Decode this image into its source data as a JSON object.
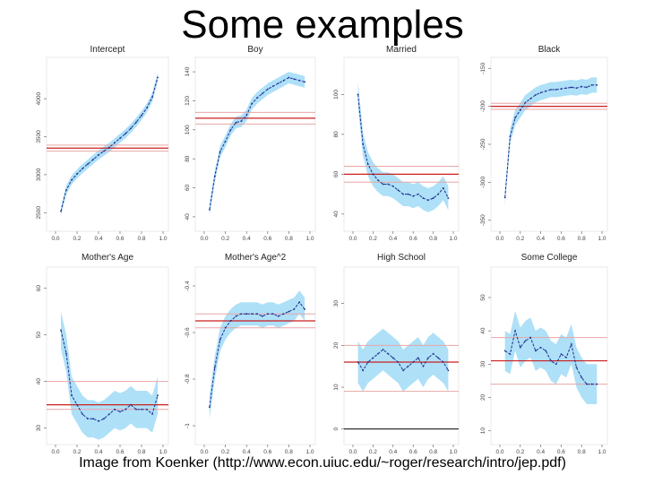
{
  "slide": {
    "title": "Some examples",
    "caption": "Image from Koenker (http://www.econ.uiuc.edu/~roger/research/intro/jep.pdf)"
  },
  "colors": {
    "band": "#aee0f8",
    "estimate": "#1f2f8f",
    "ols": "#cc1f1f",
    "ols_ci": "#e7a6a6",
    "axis": "#555555"
  },
  "chart_data": [
    {
      "type": "line",
      "title": "Intercept",
      "x": [
        0.05,
        0.1,
        0.15,
        0.2,
        0.25,
        0.3,
        0.35,
        0.4,
        0.45,
        0.5,
        0.55,
        0.6,
        0.65,
        0.7,
        0.75,
        0.8,
        0.85,
        0.9,
        0.95
      ],
      "y": [
        2520,
        2800,
        2930,
        3010,
        3080,
        3140,
        3200,
        3260,
        3310,
        3360,
        3420,
        3480,
        3540,
        3610,
        3690,
        3780,
        3880,
        4020,
        4280
      ],
      "band_half_width": 60,
      "ols": 3350,
      "ols_ci": [
        3310,
        3390
      ],
      "ylim": [
        2350,
        4450
      ],
      "yticks": [
        2500,
        3000,
        3500,
        4000
      ],
      "xticks": [
        "0.0",
        "0.2",
        "0.4",
        "0.6",
        "0.8",
        "1.0"
      ],
      "reference_zero": false
    },
    {
      "type": "line",
      "title": "Boy",
      "x": [
        0.05,
        0.1,
        0.15,
        0.2,
        0.25,
        0.3,
        0.35,
        0.4,
        0.45,
        0.5,
        0.55,
        0.6,
        0.65,
        0.7,
        0.75,
        0.8,
        0.85,
        0.9,
        0.95
      ],
      "y": [
        45,
        68,
        85,
        92,
        100,
        105,
        106,
        110,
        118,
        122,
        125,
        128,
        130,
        132,
        134,
        136,
        135,
        134,
        133
      ],
      "band_half_width": 4,
      "ols": 108,
      "ols_ci": [
        104,
        112
      ],
      "ylim": [
        35,
        145
      ],
      "yticks": [
        40,
        60,
        80,
        100,
        120,
        140
      ],
      "xticks": [
        "0.0",
        "0.2",
        "0.4",
        "0.6",
        "0.8",
        "1.0"
      ],
      "reference_zero": false
    },
    {
      "type": "line",
      "title": "Married",
      "x": [
        0.05,
        0.1,
        0.15,
        0.2,
        0.25,
        0.3,
        0.35,
        0.4,
        0.45,
        0.5,
        0.55,
        0.6,
        0.65,
        0.7,
        0.75,
        0.8,
        0.85,
        0.9,
        0.95
      ],
      "y": [
        100,
        75,
        65,
        60,
        57,
        55,
        55,
        54,
        52,
        50,
        50,
        49,
        50,
        48,
        47,
        48,
        50,
        53,
        48
      ],
      "band_half_width": 6,
      "ols": 60,
      "ols_ci": [
        56,
        64
      ],
      "ylim": [
        35,
        115
      ],
      "yticks": [
        40,
        60,
        80,
        100
      ],
      "xticks": [
        "0.0",
        "0.2",
        "0.4",
        "0.6",
        "0.8",
        "1.0"
      ],
      "reference_zero": false
    },
    {
      "type": "line",
      "title": "Black",
      "x": [
        0.05,
        0.1,
        0.15,
        0.2,
        0.25,
        0.3,
        0.35,
        0.4,
        0.45,
        0.5,
        0.55,
        0.6,
        0.65,
        0.7,
        0.75,
        0.8,
        0.85,
        0.9,
        0.95
      ],
      "y": [
        -320,
        -240,
        -215,
        -205,
        -195,
        -190,
        -185,
        -182,
        -180,
        -178,
        -178,
        -177,
        -176,
        -175,
        -176,
        -174,
        -175,
        -172,
        -172
      ],
      "band_half_width": 10,
      "ols": -200,
      "ols_ci": [
        -204,
        -196
      ],
      "ylim": [
        -355,
        -145
      ],
      "yticks": [
        -350,
        -300,
        -250,
        -200,
        -150
      ],
      "xticks": [
        "0.0",
        "0.2",
        "0.4",
        "0.6",
        "0.8",
        "1.0"
      ],
      "reference_zero": false
    },
    {
      "type": "line",
      "title": "Mother's Age",
      "x": [
        0.05,
        0.1,
        0.15,
        0.2,
        0.25,
        0.3,
        0.35,
        0.4,
        0.45,
        0.5,
        0.55,
        0.6,
        0.65,
        0.7,
        0.75,
        0.8,
        0.85,
        0.9,
        0.95
      ],
      "y": [
        51,
        46,
        37,
        35,
        33,
        32,
        32,
        31.5,
        32,
        33,
        34,
        33.5,
        34,
        35,
        34,
        34,
        34,
        33,
        37
      ],
      "band_half_width": 4,
      "ols": 35,
      "ols_ci": [
        34,
        40
      ],
      "ylim": [
        28,
        63
      ],
      "yticks": [
        30,
        40,
        50,
        60
      ],
      "xticks": [
        "0.0",
        "0.2",
        "0.4",
        "0.6",
        "0.8",
        "1.0"
      ],
      "reference_zero": false
    },
    {
      "type": "line",
      "title": "Mother's Age^2",
      "x": [
        0.05,
        0.1,
        0.15,
        0.2,
        0.25,
        0.3,
        0.35,
        0.4,
        0.45,
        0.5,
        0.55,
        0.6,
        0.65,
        0.7,
        0.75,
        0.8,
        0.85,
        0.9,
        0.95
      ],
      "y": [
        -0.92,
        -0.75,
        -0.63,
        -0.58,
        -0.55,
        -0.53,
        -0.52,
        -0.52,
        -0.52,
        -0.52,
        -0.53,
        -0.52,
        -0.52,
        -0.53,
        -0.52,
        -0.51,
        -0.5,
        -0.47,
        -0.5
      ],
      "band_half_width": 0.05,
      "ols": -0.55,
      "ols_ci": [
        -0.58,
        -0.52
      ],
      "ylim": [
        -1.05,
        -0.35
      ],
      "yticks": [
        -1.0,
        -0.8,
        -0.6,
        -0.4
      ],
      "xticks": [
        "0.0",
        "0.2",
        "0.4",
        "0.6",
        "0.8",
        "1.0"
      ],
      "reference_zero": false
    },
    {
      "type": "line",
      "title": "High School",
      "x": [
        0.05,
        0.1,
        0.15,
        0.2,
        0.25,
        0.3,
        0.35,
        0.4,
        0.45,
        0.5,
        0.55,
        0.6,
        0.65,
        0.7,
        0.75,
        0.8,
        0.85,
        0.9,
        0.95
      ],
      "y": [
        16,
        14,
        16,
        17,
        18,
        19,
        18,
        17,
        16,
        14,
        15,
        16,
        17,
        15,
        17,
        18,
        17,
        16,
        14
      ],
      "band_half_width": 5,
      "ols": 16,
      "ols_ci": [
        9,
        20
      ],
      "ylim": [
        -2,
        37
      ],
      "yticks": [
        0,
        10,
        20,
        30
      ],
      "xticks": [
        "0.0",
        "0.2",
        "0.4",
        "0.6",
        "0.8",
        "1.0"
      ],
      "reference_zero": true
    },
    {
      "type": "line",
      "title": "Some College",
      "x": [
        0.05,
        0.1,
        0.15,
        0.2,
        0.25,
        0.3,
        0.35,
        0.4,
        0.45,
        0.5,
        0.55,
        0.6,
        0.65,
        0.7,
        0.75,
        0.8,
        0.85,
        0.9,
        0.95
      ],
      "y": [
        34,
        33,
        40,
        35,
        37,
        38,
        34,
        35,
        34,
        31,
        30,
        33,
        32,
        36,
        29,
        26,
        24,
        24,
        24
      ],
      "band_half_width": 6,
      "ols": 31,
      "ols_ci": [
        24,
        38
      ],
      "ylim": [
        8,
        57
      ],
      "yticks": [
        10,
        20,
        30,
        40,
        50
      ],
      "xticks": [
        "0.0",
        "0.2",
        "0.4",
        "0.6",
        "0.8",
        "1.0"
      ],
      "reference_zero": false
    }
  ]
}
